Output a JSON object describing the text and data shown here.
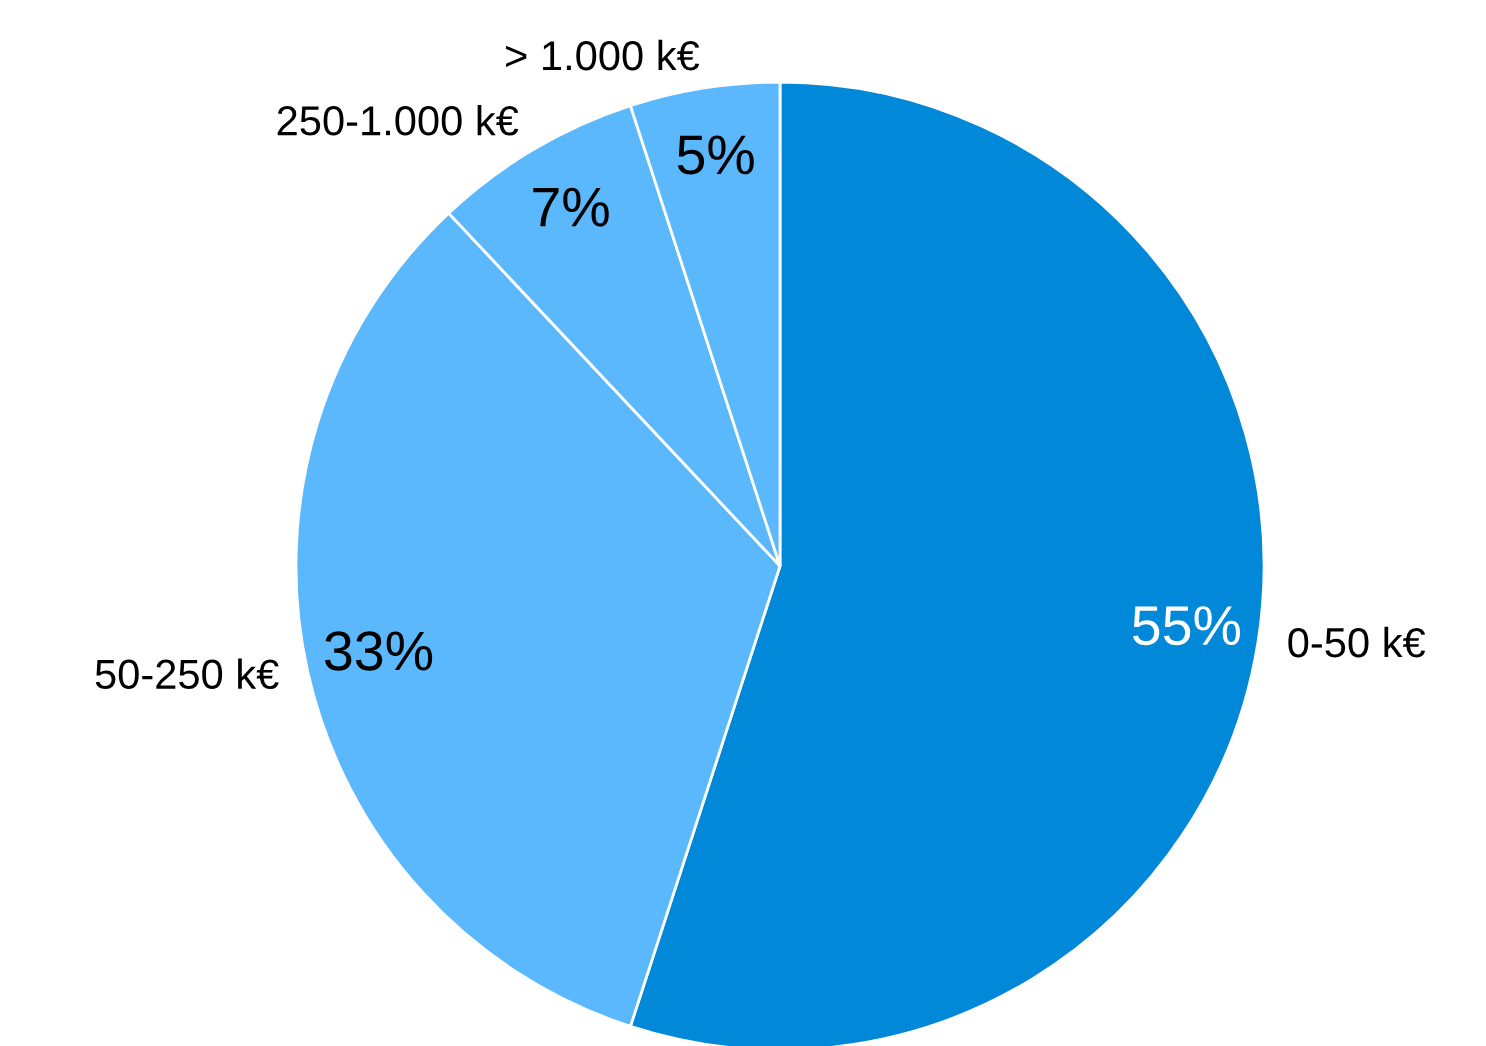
{
  "chart_data": {
    "type": "pie",
    "categories": [
      "0-50 k€",
      "50-250 k€",
      "250-1.000 k€",
      "> 1.000 k€"
    ],
    "values": [
      55,
      33,
      7,
      5
    ],
    "value_labels": [
      "55%",
      "33%",
      "7%",
      "5%"
    ],
    "colors": [
      "#0288d9",
      "#5cb8fc",
      "#5cb8fc",
      "#5cb8fc"
    ],
    "legend": false
  }
}
